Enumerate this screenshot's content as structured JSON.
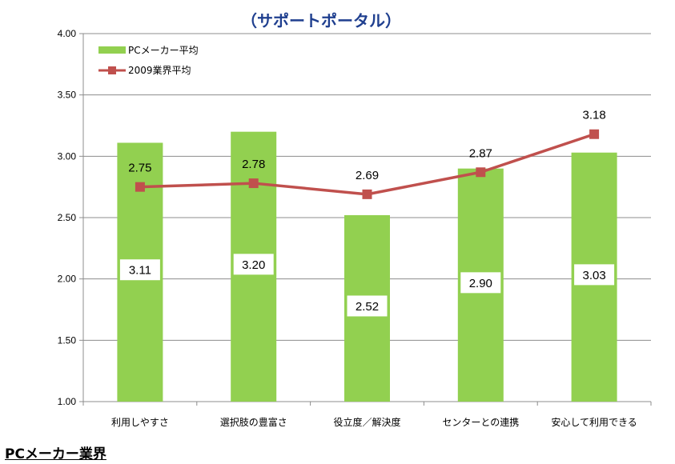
{
  "footer": "PCメーカー業界",
  "colors": {
    "bar": "#92D050",
    "line": "#C0504D",
    "title": "#1F3F8F"
  },
  "chart_data": {
    "type": "bar",
    "title": "（サポートポータル）",
    "categories": [
      "利用しやすさ",
      "選択肢の豊富さ",
      "役立度／解決度",
      "センターとの連携",
      "安心して利用できる"
    ],
    "series": [
      {
        "name": "PCメーカー平均",
        "type": "bar",
        "values": [
          3.11,
          3.2,
          2.52,
          2.9,
          3.03
        ],
        "labels": [
          "3.11",
          "3.20",
          "2.52",
          "2.90",
          "3.03"
        ]
      },
      {
        "name": "2009業界平均",
        "type": "line",
        "values": [
          2.75,
          2.78,
          2.69,
          2.87,
          3.18
        ],
        "labels": [
          "2.75",
          "2.78",
          "2.69",
          "2.87",
          "3.18"
        ]
      }
    ],
    "ylim": [
      1.0,
      4.0
    ],
    "yticks": [
      "1.00",
      "1.50",
      "2.00",
      "2.50",
      "3.00",
      "3.50",
      "4.00"
    ],
    "grid": true,
    "legend_position": "top-left"
  }
}
